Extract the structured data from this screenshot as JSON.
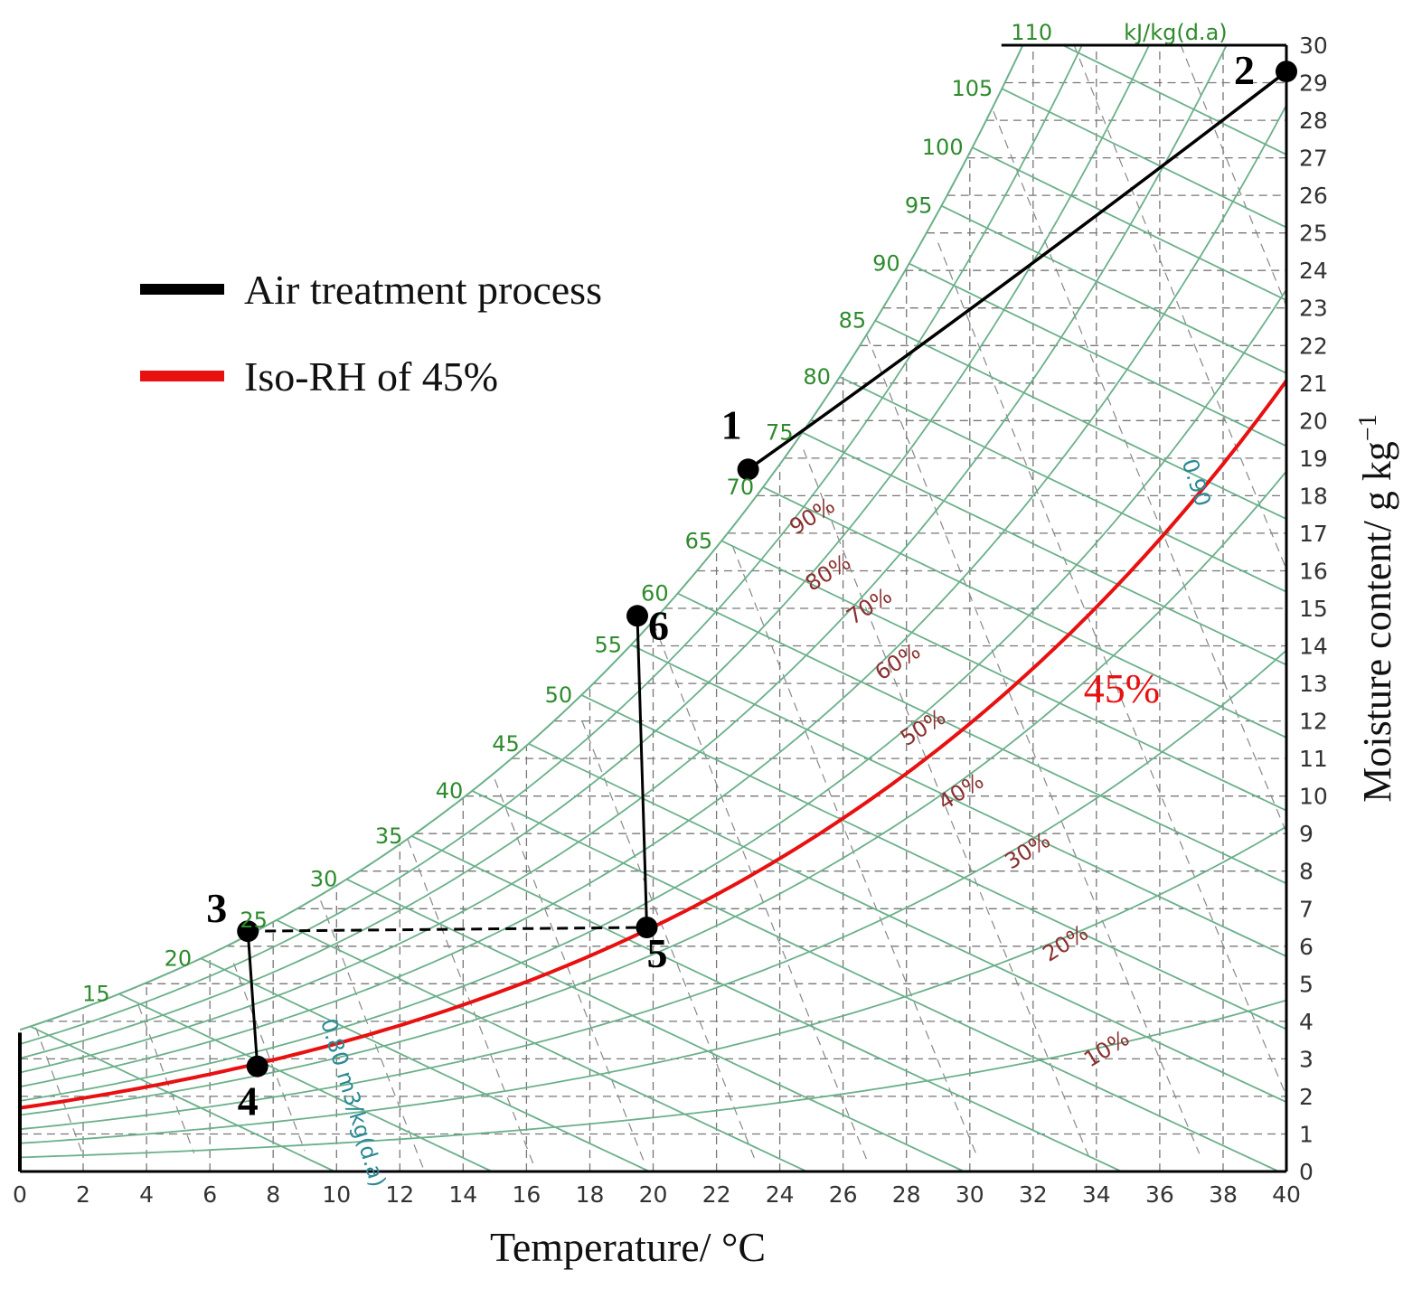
{
  "chart_data": {
    "type": "psychrometric",
    "xlabel": "Temperature/ °C",
    "ylabel": "Moisture content/ g kg",
    "ylabel_unit_sup": "−1",
    "xlim": [
      0,
      40
    ],
    "ylim": [
      0,
      30
    ],
    "x_ticks": [
      0,
      2,
      4,
      6,
      8,
      10,
      12,
      14,
      16,
      18,
      20,
      22,
      24,
      26,
      28,
      30,
      32,
      34,
      36,
      38,
      40
    ],
    "y_ticks": [
      0,
      1,
      2,
      3,
      4,
      5,
      6,
      7,
      8,
      9,
      10,
      11,
      12,
      13,
      14,
      15,
      16,
      17,
      18,
      19,
      20,
      21,
      22,
      23,
      24,
      25,
      26,
      27,
      28,
      29,
      30
    ],
    "enthalpy_unit": "kJ/kg(d.a)",
    "enthalpy_labels": [
      {
        "h": 15,
        "text": "15"
      },
      {
        "h": 20,
        "text": "20"
      },
      {
        "h": 25,
        "text": "25"
      },
      {
        "h": 30,
        "text": "30"
      },
      {
        "h": 35,
        "text": "35"
      },
      {
        "h": 40,
        "text": "40"
      },
      {
        "h": 45,
        "text": "45"
      },
      {
        "h": 50,
        "text": "50"
      },
      {
        "h": 55,
        "text": "55"
      },
      {
        "h": 60,
        "text": "60"
      },
      {
        "h": 65,
        "text": "65"
      },
      {
        "h": 70,
        "text": "70"
      },
      {
        "h": 75,
        "text": "75"
      },
      {
        "h": 80,
        "text": "80"
      },
      {
        "h": 85,
        "text": "85"
      },
      {
        "h": 90,
        "text": "90"
      },
      {
        "h": 95,
        "text": "95"
      },
      {
        "h": 100,
        "text": "100"
      },
      {
        "h": 105,
        "text": "105"
      },
      {
        "h": 110,
        "text": "110"
      }
    ],
    "rh_curves": [
      100,
      90,
      80,
      70,
      60,
      50,
      40,
      30,
      20,
      10
    ],
    "rh_labels": [
      {
        "rh": 90,
        "text": "90%",
        "t": 24.5
      },
      {
        "rh": 80,
        "text": "80%",
        "t": 25.0
      },
      {
        "rh": 70,
        "text": "70%",
        "t": 26.3
      },
      {
        "rh": 60,
        "text": "60%",
        "t": 27.2
      },
      {
        "rh": 50,
        "text": "50%",
        "t": 28.0
      },
      {
        "rh": 40,
        "text": "40%",
        "t": 29.2
      },
      {
        "rh": 30,
        "text": "30%",
        "t": 31.3
      },
      {
        "rh": 20,
        "text": "20%",
        "t": 32.5
      },
      {
        "rh": 10,
        "text": "10%",
        "t": 33.8
      }
    ],
    "volume_labels": [
      {
        "text": "0.90",
        "t": 36.7,
        "w": 18.9
      },
      {
        "text": "0.80 m^3/kg(d.a)",
        "t": 9.5,
        "w": 4.0
      }
    ],
    "iso_rh_line": {
      "rh": 45,
      "t_range": [
        0,
        40
      ],
      "label": "45%",
      "label_t": 34.8,
      "label_w": 12.5,
      "color": "#e81010"
    },
    "legend": [
      {
        "label": "Air treatment process",
        "color": "#000000"
      },
      {
        "label": "Iso-RH of 45%",
        "color": "#e81010"
      }
    ],
    "points": [
      {
        "id": "1",
        "label": "1",
        "t": 23.0,
        "w": 18.7
      },
      {
        "id": "2",
        "label": "2",
        "t": 40.0,
        "w": 29.3
      },
      {
        "id": "3",
        "label": "3",
        "t": 7.2,
        "w": 6.4
      },
      {
        "id": "4",
        "label": "4",
        "t": 7.5,
        "w": 2.8
      },
      {
        "id": "5",
        "label": "5",
        "t": 19.8,
        "w": 6.5
      },
      {
        "id": "6",
        "label": "6",
        "t": 19.5,
        "w": 14.8
      }
    ],
    "process_segments": [
      {
        "from": "1",
        "to": "2",
        "style": "curve"
      },
      {
        "from": "3",
        "to": "4",
        "style": "solid"
      },
      {
        "from": "5",
        "to": "6",
        "style": "solid"
      },
      {
        "from": "3",
        "to": "5",
        "style": "dashed"
      }
    ]
  }
}
